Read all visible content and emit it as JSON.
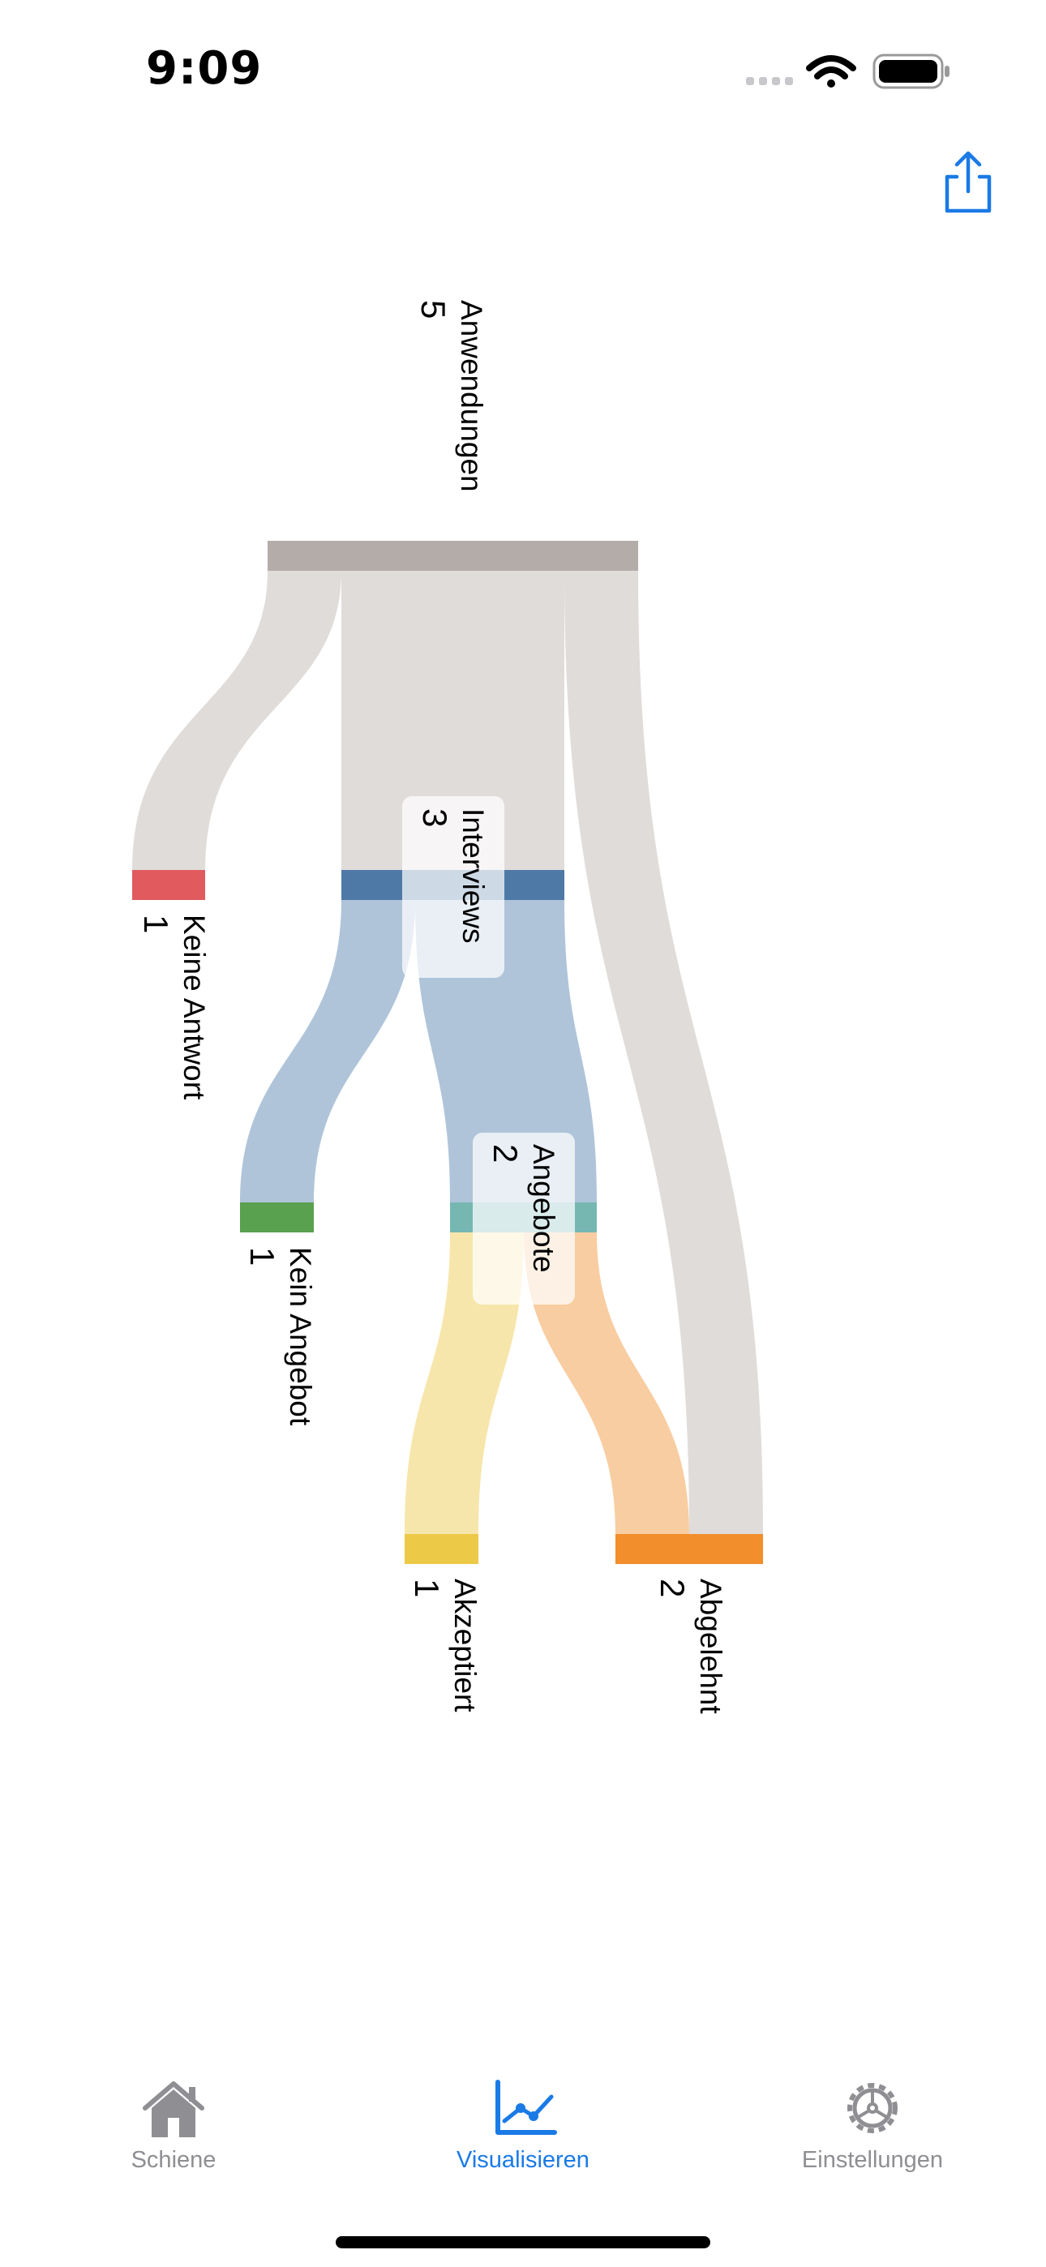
{
  "status_bar": {
    "time": "9:09"
  },
  "toolbar": {
    "share_icon": "share-icon",
    "accent_color": "#1a7ae6"
  },
  "sankey": {
    "nodes": [
      {
        "id": "anwendungen",
        "name": "Anwendungen",
        "value": "5",
        "color": "#b4aca8"
      },
      {
        "id": "keine_antwort",
        "name": "Keine Antwort",
        "value": "1",
        "color": "#e05a5e"
      },
      {
        "id": "interviews",
        "name": "Interviews",
        "value": "3",
        "color": "#4e79a7"
      },
      {
        "id": "kein_angebot",
        "name": "Kein Angebot",
        "value": "1",
        "color": "#59a14f"
      },
      {
        "id": "angebote",
        "name": "Angebote",
        "value": "2",
        "color": "#76b7b2"
      },
      {
        "id": "akzeptiert",
        "name": "Akzeptiert",
        "value": "1",
        "color": "#edc948"
      },
      {
        "id": "abgelehnt",
        "name": "Abgelehnt",
        "value": "2",
        "color": "#f28e2b"
      }
    ],
    "links": [
      {
        "source": "anwendungen",
        "target": "keine_antwort",
        "value": 1
      },
      {
        "source": "anwendungen",
        "target": "interviews",
        "value": 3
      },
      {
        "source": "anwendungen",
        "target": "abgelehnt",
        "value": 1
      },
      {
        "source": "interviews",
        "target": "kein_angebot",
        "value": 1
      },
      {
        "source": "interviews",
        "target": "angebote",
        "value": 2
      },
      {
        "source": "angebote",
        "target": "akzeptiert",
        "value": 1
      },
      {
        "source": "angebote",
        "target": "abgelehnt",
        "value": 1
      }
    ]
  },
  "tab_bar": {
    "tabs": [
      {
        "label": "Schiene",
        "icon": "house-icon",
        "active": false
      },
      {
        "label": "Visualisieren",
        "icon": "chart-line-icon",
        "active": true
      },
      {
        "label": "Einstellungen",
        "icon": "gear-icon",
        "active": false
      }
    ]
  }
}
